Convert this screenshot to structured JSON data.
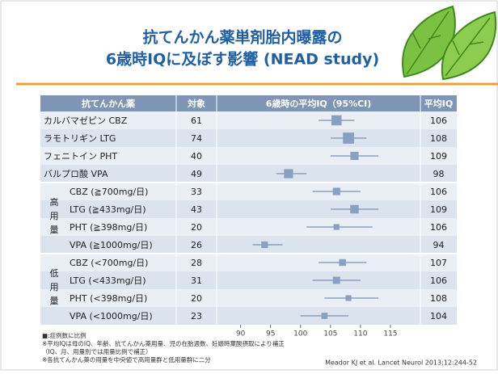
{
  "chart_data": {
    "type": "forest",
    "title": [
      "抗てんかん薬単剤胎内曝露の",
      "6歳時IQに及ぼす影響 (NEAD study)"
    ],
    "headers": [
      "抗てんかん薬",
      "対象",
      "6歳時の平均IQ（95%CI)",
      "平均IQ"
    ],
    "sections": [
      {
        "rows": [
          {
            "label": "カルバマゼピン CBZ",
            "n": 61,
            "value": 106,
            "ci": [
              103,
              109
            ]
          },
          {
            "label": "ラモトリギン LTG",
            "n": 74,
            "value": 108,
            "ci": [
              105,
              111
            ]
          },
          {
            "label": "フェニトイン PHT",
            "n": 40,
            "value": 109,
            "ci": [
              105,
              113
            ]
          },
          {
            "label": "バルプロ酸 VPA",
            "n": 49,
            "value": 98,
            "ci": [
              96,
              101
            ]
          }
        ]
      },
      {
        "label": "高用量",
        "rows": [
          {
            "label": "CBZ (≧700mg/日)",
            "n": 33,
            "value": 106,
            "ci": [
              102,
              110
            ]
          },
          {
            "label": "LTG (≧433mg/日)",
            "n": 43,
            "value": 109,
            "ci": [
              105,
              113
            ]
          },
          {
            "label": "PHT (≧398mg/日)",
            "n": 20,
            "value": 106,
            "ci": [
              101,
              112
            ]
          },
          {
            "label": "VPA (≧1000mg/日)",
            "n": 26,
            "value": 94,
            "ci": [
              92,
              97
            ]
          }
        ]
      },
      {
        "label": "低用量",
        "rows": [
          {
            "label": "CBZ (<700mg/日)",
            "n": 28,
            "value": 107,
            "ci": [
              103,
              111
            ]
          },
          {
            "label": "LTG (<433mg/日)",
            "n": 31,
            "value": 106,
            "ci": [
              102,
              110
            ]
          },
          {
            "label": "PHT (<398mg/日)",
            "n": 20,
            "value": 108,
            "ci": [
              104,
              113
            ]
          },
          {
            "label": "VPA (<1000mg/日)",
            "n": 23,
            "value": 104,
            "ci": [
              100,
              108
            ]
          }
        ]
      }
    ],
    "xlim": [
      86,
      120
    ],
    "xticks": [
      90,
      95,
      100,
      105,
      110,
      115
    ],
    "color": "#8aa0c0",
    "footnotes": [
      "■:症例数に比例",
      "※平均IQは母のIQ、年齢、抗てんかん薬用量、児の在胎週数、妊娠時葉酸摂取により補正",
      "（IQ、月、用量別では用量比例で補正）",
      "※各抗てんかん薬の用量を中央値で高用量群と低用量群に二分"
    ],
    "source": "Meador KJ et al.  Lancet Neurol 2013;12:244-52"
  }
}
